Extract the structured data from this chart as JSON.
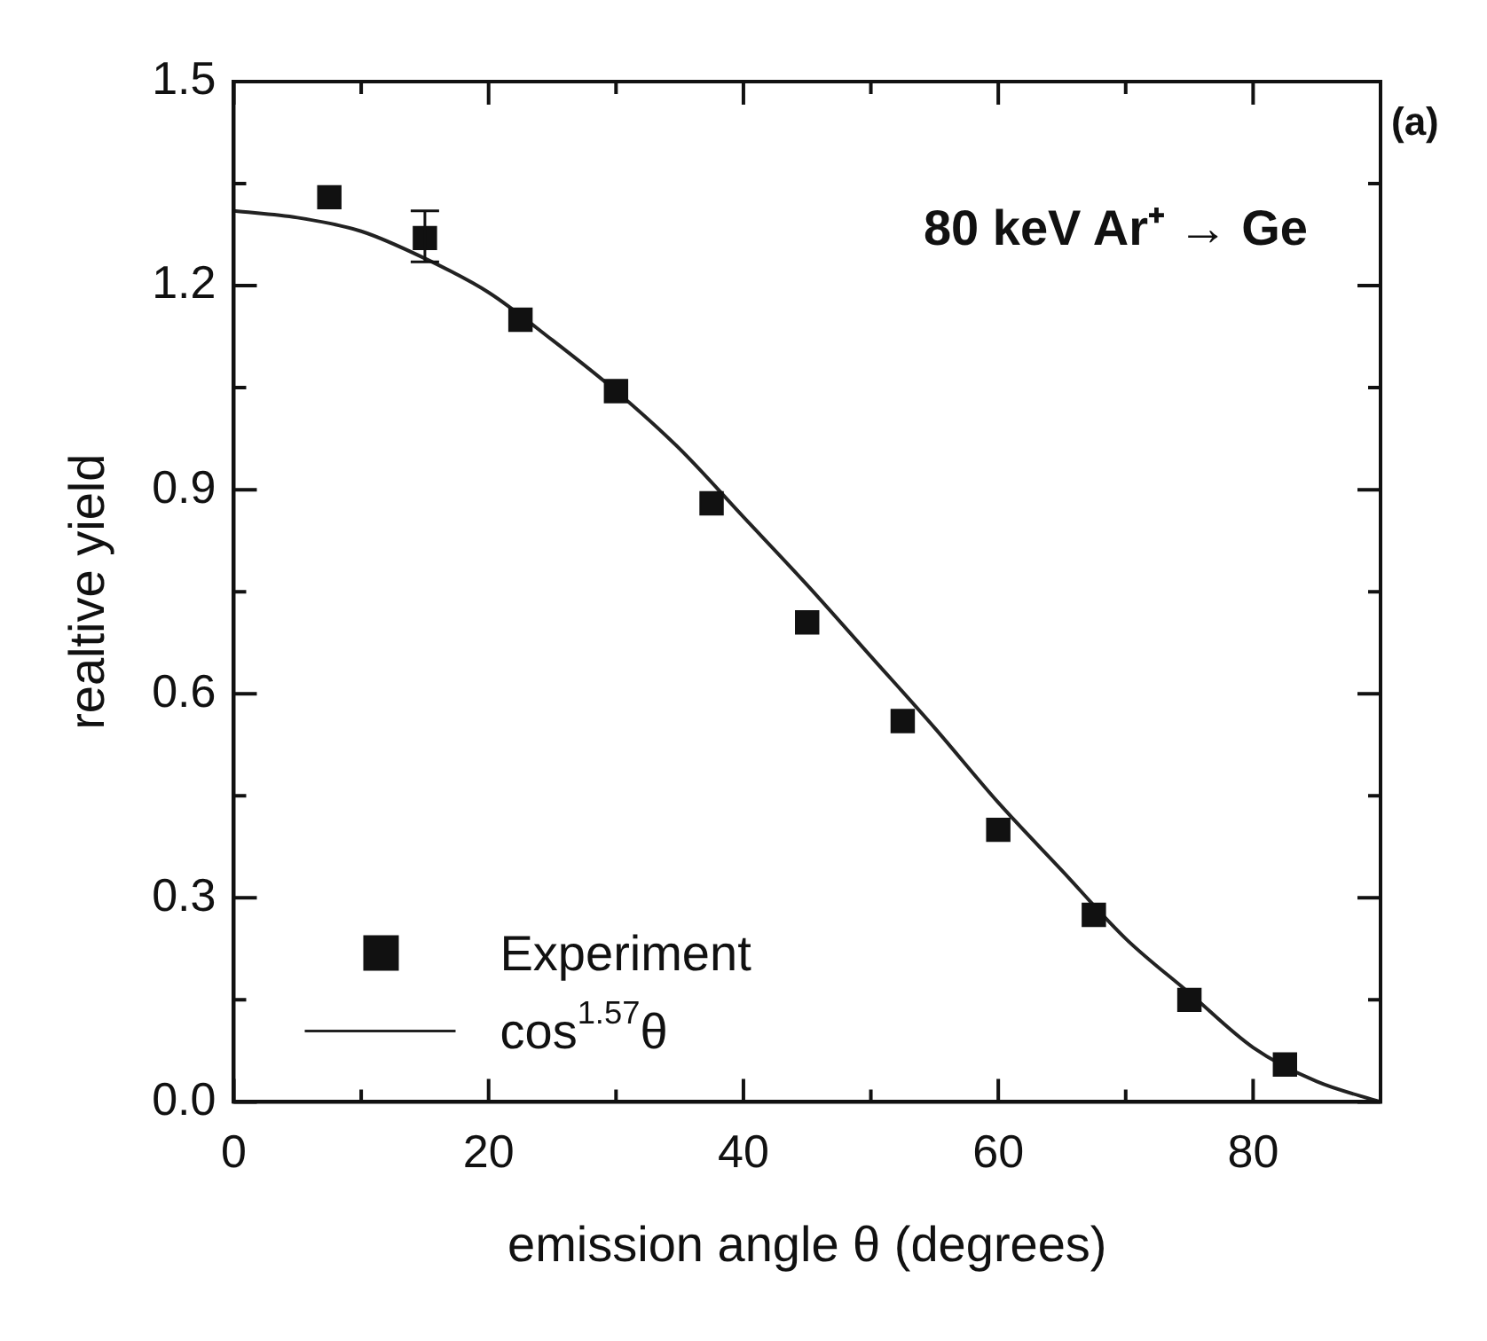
{
  "chart_data": {
    "type": "scatter",
    "xlabel": "emission angle θ (degrees)",
    "ylabel": "realtive yield",
    "xlim": [
      0,
      90
    ],
    "xticks": [
      0,
      {
        "value": 10,
        "label": null
      },
      20,
      {
        "value": 30,
        "label": null
      },
      40,
      {
        "value": 50,
        "label": null
      },
      60,
      {
        "value": 70,
        "label": null
      },
      80,
      {
        "value": 90,
        "label": null
      }
    ],
    "ylim": [
      0,
      1.5
    ],
    "yticks": [
      "0.0",
      {
        "value": 0.15,
        "label": null
      },
      0.3,
      {
        "value": 0.45,
        "label": null
      },
      0.6,
      {
        "value": 0.75,
        "label": null
      },
      0.9,
      {
        "value": 1.05,
        "label": null
      },
      1.2,
      {
        "value": 1.35,
        "label": null
      },
      1.5
    ],
    "annotations": [
      "80 keV Ar⁺ → Ge",
      "(a)"
    ],
    "legend": "bottom left",
    "grid": false,
    "series": [
      {
        "name": "Experiment",
        "type": "scatter",
        "marker": "square",
        "color": "#111111",
        "x": [
          7.5,
          15,
          22.5,
          30,
          37.5,
          45,
          52.5,
          60,
          67.5,
          75,
          82.5
        ],
        "values": [
          1.33,
          1.27,
          1.15,
          1.045,
          0.88,
          0.705,
          0.56,
          0.4,
          0.275,
          0.15,
          0.055
        ],
        "errors": [
          null,
          [
            1.235,
            1.31
          ],
          null,
          null,
          null,
          null,
          null,
          null,
          null,
          null,
          null
        ]
      },
      {
        "name": "cos$^{1.57}$θ",
        "type": "line",
        "marker": "none",
        "line_style": "solid",
        "color": "#222222",
        "x": [
          0,
          5,
          10,
          15,
          20,
          25,
          30,
          35,
          40,
          45,
          50,
          55,
          60,
          65,
          70,
          75,
          80,
          85,
          90
        ],
        "values": [
          1.31,
          1.3,
          1.28,
          1.24,
          1.19,
          1.12,
          1.045,
          0.96,
          0.86,
          0.76,
          0.655,
          0.55,
          0.44,
          0.34,
          0.24,
          0.16,
          0.08,
          0.03,
          0
        ]
      }
    ]
  }
}
